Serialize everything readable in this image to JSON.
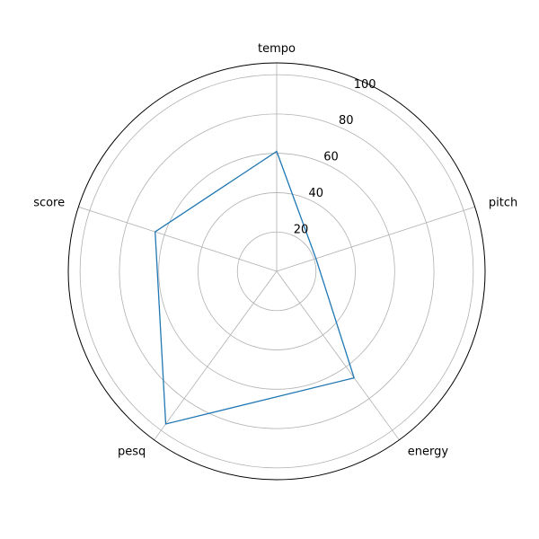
{
  "chart_data": {
    "type": "radar",
    "categories": [
      "tempo",
      "pitch",
      "energy",
      "pesq",
      "score"
    ],
    "series": [
      {
        "values": [
          61,
          21,
          67,
          96,
          65
        ],
        "color": "#1f77b4"
      }
    ],
    "rlim": [
      0,
      106
    ],
    "rticks": [
      20,
      40,
      60,
      80,
      100
    ],
    "rtick_labels": [
      "20",
      "40",
      "60",
      "80",
      "100"
    ],
    "grid": true
  }
}
